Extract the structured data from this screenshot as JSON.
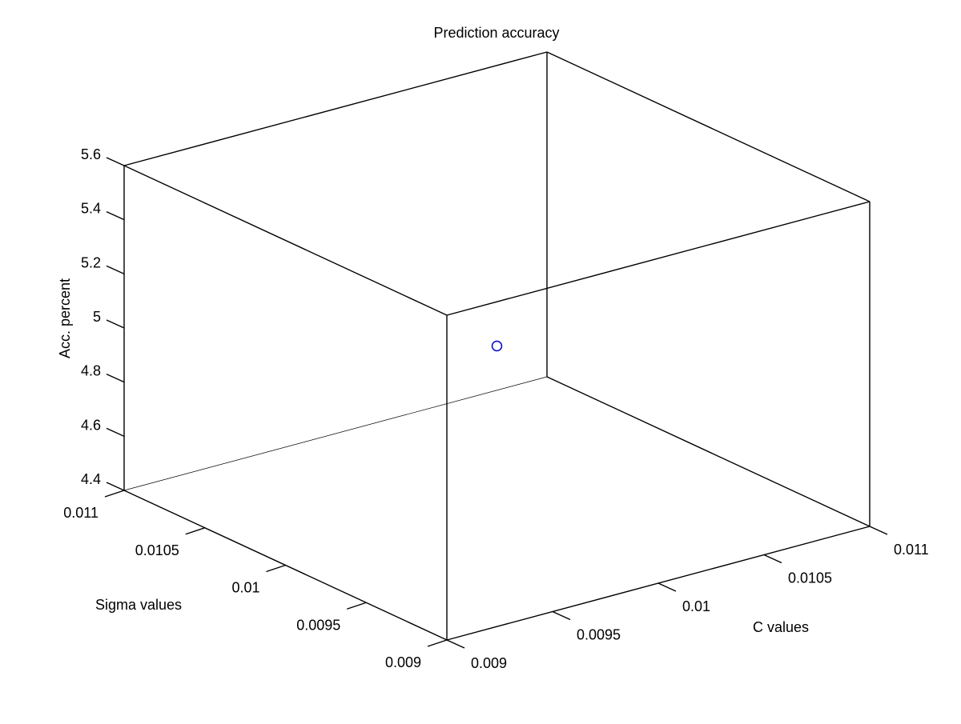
{
  "chart_data": {
    "type": "scatter3d",
    "title": "Prediction accuracy",
    "xlabel": "C values",
    "ylabel": "Sigma values",
    "zlabel": "Acc. percent",
    "xlim": [
      0.009,
      0.011
    ],
    "ylim": [
      0.009,
      0.011
    ],
    "zlim": [
      4.4,
      5.6
    ],
    "x_ticks": [
      "0.009",
      "0.0095",
      "0.01",
      "0.0105",
      "0.011"
    ],
    "y_ticks": [
      "0.009",
      "0.0095",
      "0.01",
      "0.0105",
      "0.011"
    ],
    "z_ticks": [
      "4.4",
      "4.6",
      "4.8",
      "5",
      "5.2",
      "5.4",
      "5.6"
    ],
    "grid": false,
    "marker": "circle",
    "series": [
      {
        "x": [
          0.01
        ],
        "y": [
          0.01
        ],
        "z": [
          5.0
        ],
        "color": "#0000cc"
      }
    ]
  }
}
